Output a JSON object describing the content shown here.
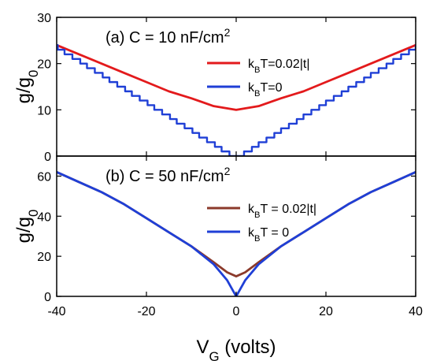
{
  "chart_data": [
    {
      "type": "line",
      "panel": "a",
      "title": "(a) C = 10 nF/cm",
      "title_sup": "2",
      "ylabel": "g/g",
      "ylabel_sub": "0",
      "xlim": [
        -40,
        40
      ],
      "ylim": [
        0,
        30
      ],
      "xticks": [
        -40,
        -20,
        0,
        20,
        40
      ],
      "yticks": [
        0,
        10,
        20,
        30
      ],
      "ytick_labels": [
        "0",
        "10",
        "20",
        "30"
      ],
      "legend_position": "right",
      "series": [
        {
          "name": "k",
          "name_sub": "B",
          "name_rest": "T=0.02|t|",
          "color": "#e31a1c",
          "style": "smooth",
          "x": [
            -40,
            -35,
            -30,
            -25,
            -20,
            -15,
            -10,
            -5,
            0,
            5,
            10,
            15,
            20,
            25,
            30,
            35,
            40
          ],
          "y": [
            24,
            22,
            20,
            18,
            16,
            14,
            12.5,
            10.8,
            10,
            10.8,
            12.5,
            14,
            16,
            18,
            20,
            22,
            24
          ]
        },
        {
          "name": "k",
          "name_sub": "B",
          "name_rest": "T=0",
          "color": "#1f3fd6",
          "style": "step",
          "step": 2,
          "x_min": -40,
          "x_max": 40,
          "ymax": 24
        }
      ]
    },
    {
      "type": "line",
      "panel": "b",
      "title": "(b) C = 50 nF/cm",
      "title_sup": "2",
      "ylabel": "g/g",
      "ylabel_sub": "0",
      "xlabel": "V",
      "xlabel_sub": "G",
      "xlabel_rest": " (volts)",
      "xlim": [
        -40,
        40
      ],
      "ylim": [
        0,
        70
      ],
      "xticks": [
        -40,
        -20,
        0,
        20,
        40
      ],
      "xtick_labels": [
        "-40",
        "-20",
        "0",
        "20",
        "40"
      ],
      "yticks": [
        0,
        20,
        40,
        60
      ],
      "ytick_labels": [
        "0",
        "20",
        "40",
        "60"
      ],
      "legend_position": "right",
      "series": [
        {
          "name": "k",
          "name_sub": "B",
          "name_rest": "T = 0.02|t|",
          "color": "#8b3a2b",
          "style": "smooth",
          "x": [
            -40,
            -35,
            -30,
            -25,
            -20,
            -15,
            -10,
            -5,
            -2,
            0,
            2,
            5,
            10,
            15,
            20,
            25,
            30,
            35,
            40
          ],
          "y": [
            62,
            57,
            52,
            46,
            39,
            32,
            25,
            17,
            12,
            10,
            12,
            17,
            25,
            32,
            39,
            46,
            52,
            57,
            62
          ]
        },
        {
          "name": "k",
          "name_sub": "B",
          "name_rest": "T = 0",
          "color": "#1f3fd6",
          "style": "smooth",
          "x": [
            -40,
            -35,
            -30,
            -25,
            -20,
            -15,
            -10,
            -5,
            -2,
            0,
            2,
            5,
            10,
            15,
            20,
            25,
            30,
            35,
            40
          ],
          "y": [
            62,
            57,
            52,
            46,
            39,
            32,
            25,
            16,
            8,
            0,
            8,
            16,
            25,
            32,
            39,
            46,
            52,
            57,
            62
          ]
        }
      ]
    }
  ]
}
